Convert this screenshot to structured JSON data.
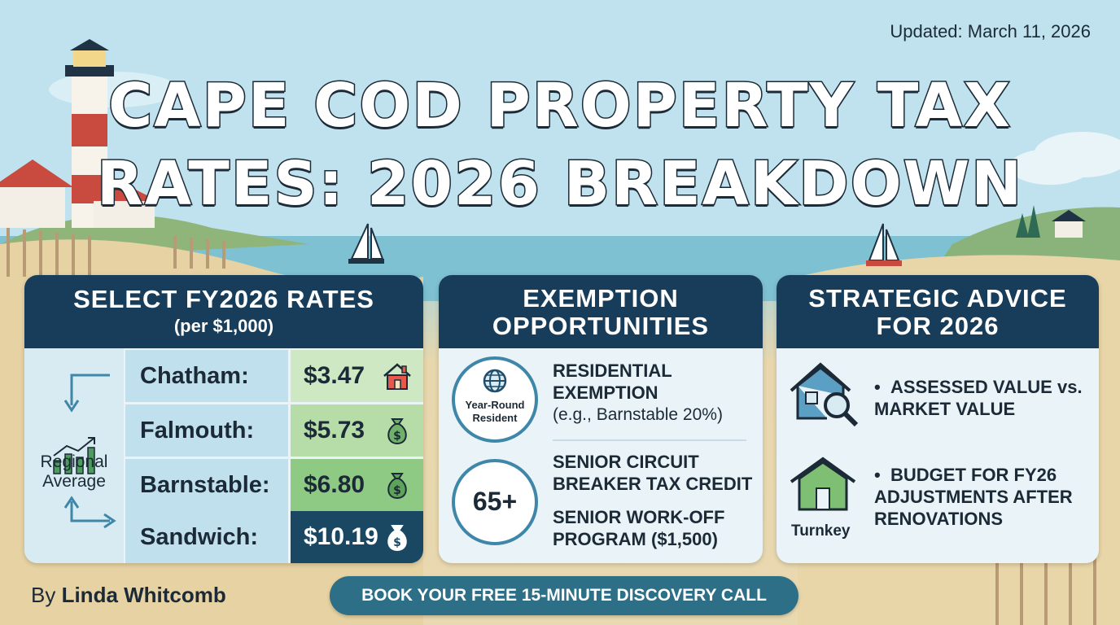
{
  "header": {
    "updated": "Updated: March 11, 2026",
    "title_line1": "CAPE COD PROPERTY TAX",
    "title_line2": "RATES: 2026 BREAKDOWN"
  },
  "rates_panel": {
    "title": "SELECT FY2026 RATES",
    "subtitle": "(per $1,000)",
    "side_label": "Regional Average",
    "rows": [
      {
        "town": "Chatham:",
        "rate": "$3.47",
        "icon": "house-icon",
        "color": "#cfe8c4"
      },
      {
        "town": "Falmouth:",
        "rate": "$5.73",
        "icon": "money-bag-icon",
        "color": "#b6dca8"
      },
      {
        "town": "Barnstable:",
        "rate": "$6.80",
        "icon": "money-bag-icon",
        "color": "#8fca84"
      },
      {
        "town": "Sandwich:",
        "rate": "$10.19",
        "icon": "money-bag-icon",
        "color": "#1a4762"
      }
    ]
  },
  "exemptions_panel": {
    "title_line1": "EXEMPTION",
    "title_line2": "OPPORTUNITIES",
    "resident_badge": "Year-Round Resident",
    "residential_title": "RESIDENTIAL EXEMPTION",
    "residential_note": "(e.g., Barnstable 20%)",
    "senior_badge": "65+",
    "senior_credit": "SENIOR CIRCUIT BREAKER TAX CREDIT",
    "senior_workoff": "SENIOR WORK-OFF PROGRAM ($1,500)"
  },
  "advice_panel": {
    "title_line1": "STRATEGIC ADVICE",
    "title_line2": "FOR 2026",
    "item1": "ASSESSED VALUE vs. MARKET VALUE",
    "item2": "BUDGET FOR FY26 ADJUSTMENTS AFTER RENOVATIONS",
    "turnkey_label": "Turnkey"
  },
  "footer": {
    "by": "By",
    "author": "Linda Whitcomb",
    "cta": "BOOK YOUR FREE 15-MINUTE DISCOVERY CALL"
  },
  "colors": {
    "navy": "#173d5a",
    "teal": "#2d6f86",
    "accent_blue": "#3f87a8"
  }
}
